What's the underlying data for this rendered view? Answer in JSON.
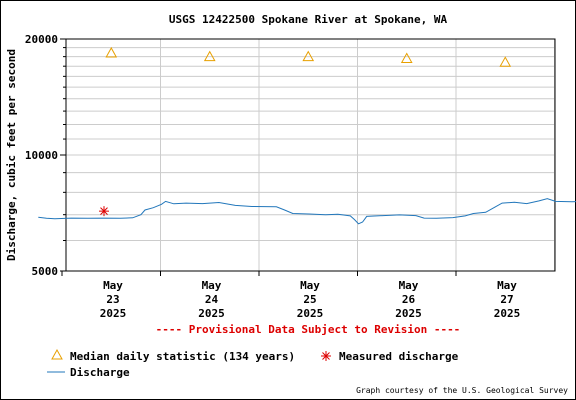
{
  "chart_data": {
    "type": "line",
    "title": "USGS 12422500 Spokane River at Spokane, WA",
    "ylabel": "Discharge, cubic feet per second",
    "y_scale": "log",
    "ylim": [
      5000,
      20000
    ],
    "y_ticks": [
      "5000",
      "10000",
      "20000"
    ],
    "grid": true,
    "x_ticks": [
      {
        "month": "May",
        "day": "23",
        "year": "2025"
      },
      {
        "month": "May",
        "day": "24",
        "year": "2025"
      },
      {
        "month": "May",
        "day": "25",
        "year": "2025"
      },
      {
        "month": "May",
        "day": "26",
        "year": "2025"
      },
      {
        "month": "May",
        "day": "27",
        "year": "2025"
      }
    ],
    "median_daily": {
      "name": "Median daily statistic (134 years)",
      "color": "#e8a000",
      "points": [
        {
          "x": "2025-05-23 12:00",
          "y": 18400
        },
        {
          "x": "2025-05-24 12:00",
          "y": 18000
        },
        {
          "x": "2025-05-25 12:00",
          "y": 18000
        },
        {
          "x": "2025-05-26 12:00",
          "y": 17800
        },
        {
          "x": "2025-05-27 12:00",
          "y": 17400
        }
      ]
    },
    "measured": {
      "name": "Measured discharge",
      "color": "#dd0000",
      "points": [
        {
          "x": "2025-05-23 00:00",
          "y": 7150
        }
      ]
    },
    "discharge": {
      "name": "Discharge",
      "color": "#2277bb",
      "points": [
        {
          "x": "2025-05-22 08:00",
          "y": 6890
        },
        {
          "x": "2025-05-22 10:00",
          "y": 6850
        },
        {
          "x": "2025-05-22 12:00",
          "y": 6830
        },
        {
          "x": "2025-05-22 16:00",
          "y": 6860
        },
        {
          "x": "2025-05-22 20:00",
          "y": 6850
        },
        {
          "x": "2025-05-23 00:00",
          "y": 6860
        },
        {
          "x": "2025-05-23 04:00",
          "y": 6850
        },
        {
          "x": "2025-05-23 07:00",
          "y": 6870
        },
        {
          "x": "2025-05-23 09:00",
          "y": 7000
        },
        {
          "x": "2025-05-23 10:00",
          "y": 7200
        },
        {
          "x": "2025-05-23 12:00",
          "y": 7300
        },
        {
          "x": "2025-05-23 14:00",
          "y": 7450
        },
        {
          "x": "2025-05-23 15:00",
          "y": 7580
        },
        {
          "x": "2025-05-23 17:00",
          "y": 7470
        },
        {
          "x": "2025-05-23 20:00",
          "y": 7500
        },
        {
          "x": "2025-05-24 00:00",
          "y": 7480
        },
        {
          "x": "2025-05-24 04:00",
          "y": 7530
        },
        {
          "x": "2025-05-24 08:00",
          "y": 7400
        },
        {
          "x": "2025-05-24 12:00",
          "y": 7350
        },
        {
          "x": "2025-05-24 18:00",
          "y": 7340
        },
        {
          "x": "2025-05-24 20:00",
          "y": 7200
        },
        {
          "x": "2025-05-24 22:00",
          "y": 7050
        },
        {
          "x": "2025-05-25 02:00",
          "y": 7030
        },
        {
          "x": "2025-05-25 06:00",
          "y": 7000
        },
        {
          "x": "2025-05-25 09:00",
          "y": 7020
        },
        {
          "x": "2025-05-25 12:00",
          "y": 6950
        },
        {
          "x": "2025-05-25 13:00",
          "y": 6800
        },
        {
          "x": "2025-05-25 14:00",
          "y": 6630
        },
        {
          "x": "2025-05-25 15:00",
          "y": 6700
        },
        {
          "x": "2025-05-25 16:00",
          "y": 6930
        },
        {
          "x": "2025-05-25 20:00",
          "y": 6960
        },
        {
          "x": "2025-05-26 00:00",
          "y": 6990
        },
        {
          "x": "2025-05-26 04:00",
          "y": 6960
        },
        {
          "x": "2025-05-26 06:00",
          "y": 6860
        },
        {
          "x": "2025-05-26 09:00",
          "y": 6850
        },
        {
          "x": "2025-05-26 13:00",
          "y": 6880
        },
        {
          "x": "2025-05-26 16:00",
          "y": 6950
        },
        {
          "x": "2025-05-26 18:00",
          "y": 7050
        },
        {
          "x": "2025-05-26 21:00",
          "y": 7100
        },
        {
          "x": "2025-05-26 23:00",
          "y": 7300
        },
        {
          "x": "2025-05-27 01:00",
          "y": 7500
        },
        {
          "x": "2025-05-27 04:00",
          "y": 7540
        },
        {
          "x": "2025-05-27 07:00",
          "y": 7480
        },
        {
          "x": "2025-05-27 10:00",
          "y": 7600
        },
        {
          "x": "2025-05-27 12:00",
          "y": 7700
        },
        {
          "x": "2025-05-27 14:00",
          "y": 7580
        },
        {
          "x": "2025-05-27 18:00",
          "y": 7560
        },
        {
          "x": "2025-05-27 22:00",
          "y": 7590
        },
        {
          "x": "2025-05-28 00:00",
          "y": 7580
        },
        {
          "x": "2025-05-28 02:00",
          "y": 7650
        },
        {
          "x": "2025-05-28 03:00",
          "y": 7600
        }
      ]
    }
  },
  "notice": "---- Provisional Data Subject to Revision ----",
  "legend": {
    "median_label": "Median daily statistic (134 years)",
    "measured_label": "Measured discharge",
    "discharge_label": "Discharge"
  },
  "credit": "Graph courtesy of the U.S. Geological Survey",
  "colors": {
    "notice": "#dd0000",
    "grid": "#cccccc",
    "axis": "#000000"
  }
}
